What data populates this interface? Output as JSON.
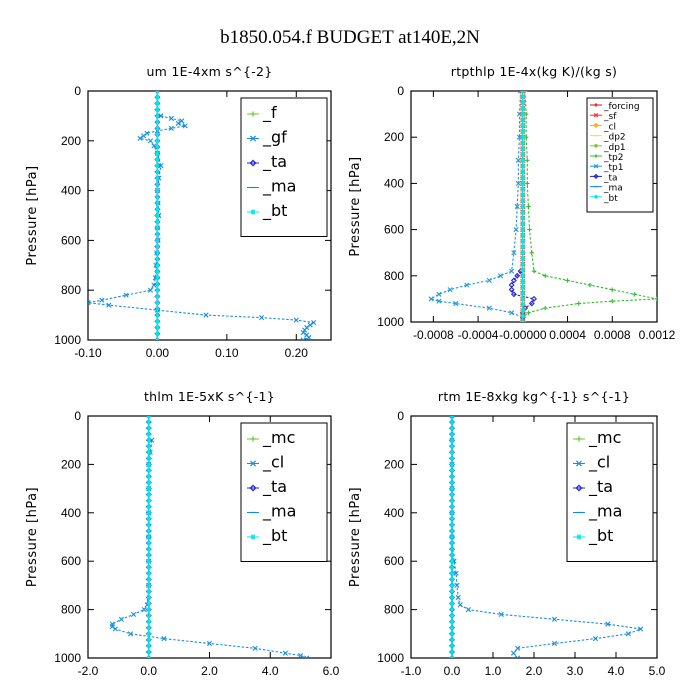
{
  "figure_title": "b1850.054.f  BUDGET at140E,2N",
  "colors": {
    "f": "#66cc33",
    "gf": "#1a8fe0",
    "ta": "#2222dd",
    "ma": "#1188ee",
    "bt": "#00e8e8",
    "forcing": "#dd1111",
    "sf": "#ee3333",
    "cl": "#ffaa00",
    "dp2": "#ffdd22",
    "dp1": "#77cc33",
    "tp2": "#33bb33",
    "tp1": "#2299dd",
    "mc": "#66cc33"
  },
  "chart_data": [
    {
      "type": "line",
      "title": "um   1E-4xm  s^{-2}",
      "ylabel": "Pressure [hPa]",
      "xlim": [
        -0.1,
        0.25
      ],
      "ylim": [
        1000,
        0
      ],
      "y_inverted": true,
      "xticks": [
        -0.1,
        0.0,
        0.1,
        0.2
      ],
      "xtick_labels": [
        "-0.10",
        "0.00",
        "0.10",
        "0.20"
      ],
      "yticks": [
        0,
        200,
        400,
        600,
        800,
        1000
      ],
      "legend_position": "top-right",
      "legend_style": "big",
      "series": [
        {
          "name": "_f",
          "color_key": "f",
          "y": [
            0,
            1000
          ],
          "x": [
            0,
            0
          ]
        },
        {
          "name": "_gf",
          "color_key": "gf",
          "y": [
            100,
            110,
            120,
            130,
            140,
            150,
            160,
            170,
            180,
            190,
            200,
            220,
            250,
            300,
            350,
            400,
            450,
            500,
            550,
            600,
            650,
            700,
            750,
            780,
            800,
            820,
            840,
            850,
            860,
            880,
            900,
            910,
            920,
            930,
            940,
            950,
            960,
            970,
            980,
            990,
            1000
          ],
          "x": [
            0.005,
            0.02,
            0.035,
            0.03,
            0.04,
            0.02,
            0.0,
            -0.015,
            -0.02,
            -0.025,
            -0.01,
            -0.005,
            0.0,
            0.005,
            0.002,
            0.0,
            0.001,
            0.002,
            0.0,
            0.001,
            -0.001,
            -0.002,
            -0.003,
            -0.005,
            -0.01,
            -0.045,
            -0.08,
            -0.1,
            -0.07,
            0.0,
            0.07,
            0.15,
            0.2,
            0.225,
            0.22,
            0.215,
            0.212,
            0.21,
            0.215,
            0.218,
            0.21
          ]
        },
        {
          "name": "_ta",
          "color_key": "ta",
          "y": [
            0,
            1000
          ],
          "x": [
            0,
            0
          ]
        },
        {
          "name": "_ma",
          "color_key": "ma",
          "y": [
            0,
            1000
          ],
          "x": [
            0,
            0
          ]
        },
        {
          "name": "_bt",
          "color_key": "bt",
          "y": [
            0,
            1000
          ],
          "x": [
            0,
            0
          ]
        }
      ]
    },
    {
      "type": "line",
      "title": "rtpthlp   1E-4x(kg K)/(kg s)",
      "ylabel": "Pressure [hPa]",
      "xlim": [
        -0.001,
        0.0012
      ],
      "ylim": [
        1000,
        0
      ],
      "y_inverted": true,
      "xticks": [
        -0.0008,
        -0.0004,
        0.0,
        0.0004,
        0.0008,
        0.0012
      ],
      "xtick_labels": [
        "-0.0008",
        "-0.0004",
        "-0.00000",
        "0.0004",
        "0.0008",
        "0.0012"
      ],
      "yticks": [
        0,
        200,
        400,
        600,
        800,
        1000
      ],
      "legend_position": "top-right",
      "legend_style": "small",
      "series": [
        {
          "name": "_forcing",
          "color_key": "forcing",
          "y": [
            0,
            1000
          ],
          "x": [
            0,
            0
          ]
        },
        {
          "name": "_sf",
          "color_key": "sf",
          "y": [
            0,
            1000
          ],
          "x": [
            0,
            0
          ]
        },
        {
          "name": "_cl",
          "color_key": "cl",
          "y": [
            0,
            1000
          ],
          "x": [
            0,
            0
          ]
        },
        {
          "name": "_dp2",
          "color_key": "dp2",
          "y": [
            0,
            1000
          ],
          "x": [
            0,
            0
          ]
        },
        {
          "name": "_dp1",
          "color_key": "dp1",
          "y": [
            0,
            1000
          ],
          "x": [
            0,
            0
          ]
        },
        {
          "name": "_tp2",
          "color_key": "tp2",
          "y": [
            0,
            100,
            200,
            300,
            400,
            500,
            600,
            700,
            780,
            800,
            820,
            840,
            860,
            880,
            900,
            910,
            920,
            940,
            960,
            980,
            1000
          ],
          "x": [
            2e-05,
            3e-05,
            3e-05,
            4e-05,
            4e-05,
            5e-05,
            6e-05,
            8e-05,
            0.0001,
            0.0002,
            0.0004,
            0.0006,
            0.0008,
            0.001,
            0.0012,
            0.0008,
            0.0005,
            0.0002,
            5e-05,
            0.0,
            0.0
          ]
        },
        {
          "name": "_tp1",
          "color_key": "tp1",
          "y": [
            0,
            100,
            200,
            300,
            400,
            500,
            600,
            700,
            780,
            800,
            820,
            840,
            860,
            880,
            900,
            910,
            920,
            940,
            960,
            980,
            1000
          ],
          "x": [
            -2e-05,
            -3e-05,
            -3e-05,
            -4e-05,
            -4e-05,
            -5e-05,
            -6e-05,
            -8e-05,
            -0.0001,
            -0.0002,
            -0.0003,
            -0.0005,
            -0.00065,
            -0.00075,
            -0.00082,
            -0.00075,
            -0.0006,
            -0.0003,
            -0.0001,
            0.0,
            0.0
          ]
        },
        {
          "name": "_ta",
          "color_key": "ta",
          "y": [
            780,
            800,
            820,
            840,
            860,
            880,
            900,
            920,
            940,
            960,
            980
          ],
          "x": [
            -2e-05,
            -5e-05,
            -8e-05,
            -0.0001,
            -0.0001,
            -8e-05,
            0.0001,
            8e-05,
            2e-05,
            0.0,
            0.0
          ]
        },
        {
          "name": "_ma",
          "color_key": "ma",
          "y": [
            0,
            1000
          ],
          "x": [
            0,
            0
          ]
        },
        {
          "name": "_bt",
          "color_key": "bt",
          "y": [
            0,
            1000
          ],
          "x": [
            0,
            0
          ]
        }
      ]
    },
    {
      "type": "line",
      "title": "thlm   1E-5xK  s^{-1}",
      "ylabel": "Pressure [hPa]",
      "xlim": [
        -2.0,
        6.0
      ],
      "ylim": [
        1000,
        0
      ],
      "y_inverted": true,
      "xticks": [
        -2.0,
        0.0,
        2.0,
        4.0,
        6.0
      ],
      "xtick_labels": [
        "-2.0",
        "0.0",
        "2.0",
        "4.0",
        "6.0"
      ],
      "yticks": [
        0,
        200,
        400,
        600,
        800,
        1000
      ],
      "legend_position": "top-right",
      "legend_style": "big",
      "series": [
        {
          "name": "_mc",
          "color_key": "mc",
          "y": [
            0,
            1000
          ],
          "x": [
            0,
            0
          ]
        },
        {
          "name": "_cl",
          "color_key": "gf",
          "y": [
            100,
            150,
            200,
            300,
            400,
            500,
            600,
            700,
            780,
            800,
            820,
            840,
            860,
            870,
            880,
            900,
            920,
            940,
            960,
            980,
            990,
            1000
          ],
          "x": [
            0.1,
            0.05,
            0.0,
            0.0,
            0.0,
            0.0,
            0.0,
            0.0,
            -0.05,
            -0.15,
            -0.5,
            -0.9,
            -1.2,
            -1.2,
            -1.1,
            -0.6,
            0.5,
            2.0,
            3.5,
            4.5,
            5.0,
            5.2
          ]
        },
        {
          "name": "_ta",
          "color_key": "ta",
          "y": [
            0,
            1000
          ],
          "x": [
            0,
            0
          ]
        },
        {
          "name": "_ma",
          "color_key": "ma",
          "y": [
            0,
            1000
          ],
          "x": [
            0,
            0
          ]
        },
        {
          "name": "_bt",
          "color_key": "bt",
          "y": [
            0,
            1000
          ],
          "x": [
            0,
            0
          ]
        }
      ]
    },
    {
      "type": "line",
      "title": "rtm   1E-8xkg  kg^{-1}  s^{-1}",
      "ylabel": "Pressure [hPa]",
      "xlim": [
        -1.0,
        5.0
      ],
      "ylim": [
        1000,
        0
      ],
      "y_inverted": true,
      "xticks": [
        -1.0,
        0.0,
        1.0,
        2.0,
        3.0,
        4.0,
        5.0
      ],
      "xtick_labels": [
        "-1.0",
        "0.0",
        "1.0",
        "2.0",
        "3.0",
        "4.0",
        "5.0"
      ],
      "yticks": [
        0,
        200,
        400,
        600,
        800,
        1000
      ],
      "legend_position": "top-right",
      "legend_style": "big",
      "series": [
        {
          "name": "_mc",
          "color_key": "mc",
          "y": [
            0,
            1000
          ],
          "x": [
            0,
            0
          ]
        },
        {
          "name": "_cl",
          "color_key": "gf",
          "y": [
            0,
            100,
            200,
            300,
            400,
            500,
            600,
            650,
            700,
            750,
            780,
            800,
            820,
            840,
            860,
            880,
            900,
            920,
            940,
            960,
            980,
            1000
          ],
          "x": [
            0.0,
            0.0,
            0.0,
            0.0,
            0.0,
            0.0,
            0.05,
            0.1,
            0.12,
            0.15,
            0.2,
            0.4,
            1.2,
            2.5,
            3.8,
            4.6,
            4.3,
            3.5,
            2.5,
            1.6,
            1.5,
            1.6
          ]
        },
        {
          "name": "_ta",
          "color_key": "ta",
          "y": [
            0,
            1000
          ],
          "x": [
            0,
            0
          ]
        },
        {
          "name": "_ma",
          "color_key": "ma",
          "y": [
            0,
            1000
          ],
          "x": [
            0,
            0
          ]
        },
        {
          "name": "_bt",
          "color_key": "bt",
          "y": [
            0,
            1000
          ],
          "x": [
            0,
            0
          ]
        }
      ]
    }
  ]
}
